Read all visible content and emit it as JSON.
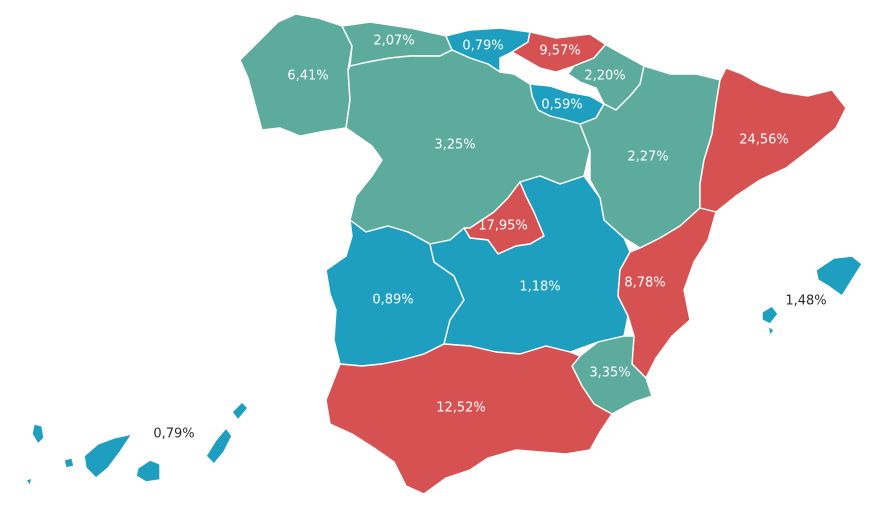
{
  "colors": {
    "green": "#5dab9c",
    "blue": "#1f9fc0",
    "red": "#d65152",
    "outside_label": "#2b2b2b"
  },
  "regions": [
    {
      "id": "galicia",
      "value": "6,41%",
      "color": "green"
    },
    {
      "id": "asturias",
      "value": "2,07%",
      "color": "green"
    },
    {
      "id": "cantabria",
      "value": "0,79%",
      "color": "blue"
    },
    {
      "id": "pais-vasco",
      "value": "9,57%",
      "color": "red"
    },
    {
      "id": "navarra",
      "value": "2,20%",
      "color": "green"
    },
    {
      "id": "la-rioja",
      "value": "0,59%",
      "color": "blue"
    },
    {
      "id": "castilla-leon",
      "value": "3,25%",
      "color": "green"
    },
    {
      "id": "aragon",
      "value": "2,27%",
      "color": "green"
    },
    {
      "id": "cataluna",
      "value": "24,56%",
      "color": "red"
    },
    {
      "id": "madrid",
      "value": "17,95%",
      "color": "red"
    },
    {
      "id": "extremadura",
      "value": "0,89%",
      "color": "blue"
    },
    {
      "id": "castilla-la-mancha",
      "value": "1,18%",
      "color": "blue"
    },
    {
      "id": "valencia",
      "value": "8,78%",
      "color": "red"
    },
    {
      "id": "murcia",
      "value": "3,35%",
      "color": "green"
    },
    {
      "id": "andalucia",
      "value": "12,52%",
      "color": "red"
    },
    {
      "id": "baleares",
      "value": "1,48%",
      "color": "blue"
    },
    {
      "id": "canarias",
      "value": "0,79%",
      "color": "blue"
    }
  ]
}
